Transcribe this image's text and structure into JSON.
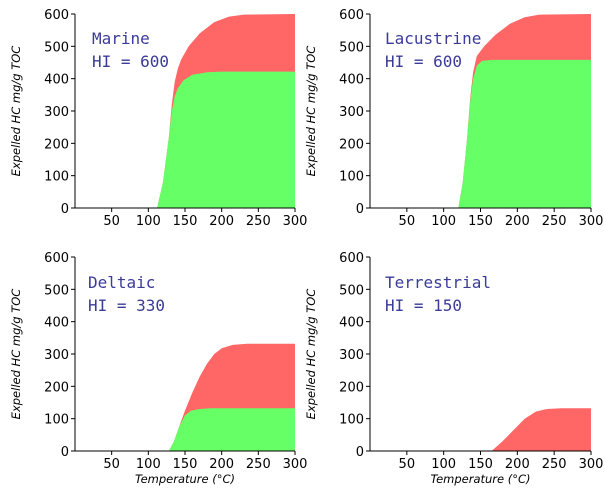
{
  "chart_data": [
    {
      "type": "area",
      "title": "",
      "annotations": [
        "Marine",
        "HI = 600"
      ],
      "ylabel": "Expelled HC  mg/g TOC",
      "xlabel": "",
      "xlim": [
        0,
        300
      ],
      "ylim": [
        0,
        600
      ],
      "xticks": [
        "50",
        "100",
        "150",
        "200",
        "250",
        "300"
      ],
      "yticks": [
        "0",
        "100",
        "200",
        "300",
        "400",
        "500",
        "600"
      ],
      "grid": false,
      "legend": "none",
      "series": [
        {
          "color": "#ff6666",
          "points": [
            [
              112,
              0
            ],
            [
              120,
              80
            ],
            [
              128,
              220
            ],
            [
              132,
              320
            ],
            [
              136,
              390
            ],
            [
              140,
              430
            ],
            [
              145,
              460
            ],
            [
              155,
              500
            ],
            [
              170,
              540
            ],
            [
              190,
              575
            ],
            [
              210,
              592
            ],
            [
              230,
              598
            ],
            [
              300,
              600
            ]
          ]
        },
        {
          "color": "#66ff66",
          "points": [
            [
              112,
              0
            ],
            [
              120,
              80
            ],
            [
              128,
              220
            ],
            [
              132,
              300
            ],
            [
              136,
              345
            ],
            [
              140,
              370
            ],
            [
              148,
              395
            ],
            [
              160,
              412
            ],
            [
              180,
              420
            ],
            [
              200,
              422
            ],
            [
              300,
              422
            ]
          ]
        }
      ]
    },
    {
      "type": "area",
      "title": "",
      "annotations": [
        "Lacustrine",
        "HI = 600"
      ],
      "ylabel": "Expelled HC  mg/g TOC",
      "xlabel": "",
      "xlim": [
        0,
        300
      ],
      "ylim": [
        0,
        600
      ],
      "xticks": [
        "50",
        "100",
        "150",
        "200",
        "250",
        "300"
      ],
      "yticks": [
        "0",
        "100",
        "200",
        "300",
        "400",
        "500",
        "600"
      ],
      "grid": false,
      "legend": "none",
      "series": [
        {
          "color": "#ff6666",
          "points": [
            [
              120,
              0
            ],
            [
              126,
              80
            ],
            [
              132,
              220
            ],
            [
              136,
              340
            ],
            [
              140,
              420
            ],
            [
              145,
              470
            ],
            [
              155,
              500
            ],
            [
              170,
              535
            ],
            [
              190,
              570
            ],
            [
              210,
              590
            ],
            [
              230,
              598
            ],
            [
              300,
              600
            ]
          ]
        },
        {
          "color": "#66ff66",
          "points": [
            [
              120,
              0
            ],
            [
              126,
              80
            ],
            [
              132,
              220
            ],
            [
              136,
              330
            ],
            [
              140,
              400
            ],
            [
              145,
              440
            ],
            [
              152,
              455
            ],
            [
              165,
              458
            ],
            [
              300,
              458
            ]
          ]
        }
      ]
    },
    {
      "type": "area",
      "title": "",
      "annotations": [
        "Deltaic",
        "HI = 330"
      ],
      "ylabel": "Expelled HC  mg/g TOC",
      "xlabel": "Temperature (°C)",
      "xlim": [
        0,
        300
      ],
      "ylim": [
        0,
        600
      ],
      "xticks": [
        "50",
        "100",
        "150",
        "200",
        "250",
        "300"
      ],
      "yticks": [
        "0",
        "100",
        "200",
        "300",
        "400",
        "500",
        "600"
      ],
      "grid": false,
      "legend": "none",
      "series": [
        {
          "color": "#ff6666",
          "points": [
            [
              128,
              0
            ],
            [
              135,
              30
            ],
            [
              142,
              75
            ],
            [
              150,
              125
            ],
            [
              160,
              180
            ],
            [
              170,
              230
            ],
            [
              180,
              270
            ],
            [
              190,
              300
            ],
            [
              200,
              318
            ],
            [
              215,
              328
            ],
            [
              235,
              332
            ],
            [
              300,
              332
            ]
          ]
        },
        {
          "color": "#66ff66",
          "points": [
            [
              128,
              0
            ],
            [
              135,
              30
            ],
            [
              142,
              75
            ],
            [
              150,
              110
            ],
            [
              158,
              125
            ],
            [
              170,
              130
            ],
            [
              185,
              132
            ],
            [
              300,
              132
            ]
          ]
        }
      ]
    },
    {
      "type": "area",
      "title": "",
      "annotations": [
        "Terrestrial",
        "HI = 150"
      ],
      "ylabel": "Expelled HC  mg/g TOC",
      "xlabel": "Temperature (°C)",
      "xlim": [
        0,
        300
      ],
      "ylim": [
        0,
        600
      ],
      "xticks": [
        "50",
        "100",
        "150",
        "200",
        "250",
        "300"
      ],
      "yticks": [
        "0",
        "100",
        "200",
        "300",
        "400",
        "500",
        "600"
      ],
      "grid": false,
      "legend": "none",
      "series": [
        {
          "color": "#ff6666",
          "points": [
            [
              165,
              0
            ],
            [
              180,
              30
            ],
            [
              195,
              65
            ],
            [
              210,
              100
            ],
            [
              225,
              122
            ],
            [
              240,
              130
            ],
            [
              260,
              132
            ],
            [
              300,
              132
            ]
          ]
        }
      ]
    }
  ]
}
